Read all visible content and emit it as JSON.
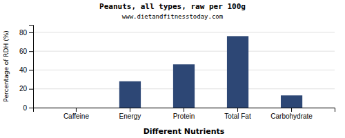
{
  "chart_data": {
    "type": "bar",
    "title": "Peanuts, all types, raw per 100g",
    "subtitle": "www.dietandfitnesstoday.com",
    "xlabel": "Different Nutrients",
    "ylabel": "Percentage of RDH (%)",
    "categories": [
      "Caffeine",
      "Energy",
      "Protein",
      "Total Fat",
      "Carbohydrate"
    ],
    "values": [
      0,
      28,
      46,
      76,
      13
    ],
    "color": "#2d4775",
    "ylim": [
      0,
      88
    ],
    "yticks": [
      0,
      20,
      40,
      60,
      80
    ],
    "grid": true
  }
}
